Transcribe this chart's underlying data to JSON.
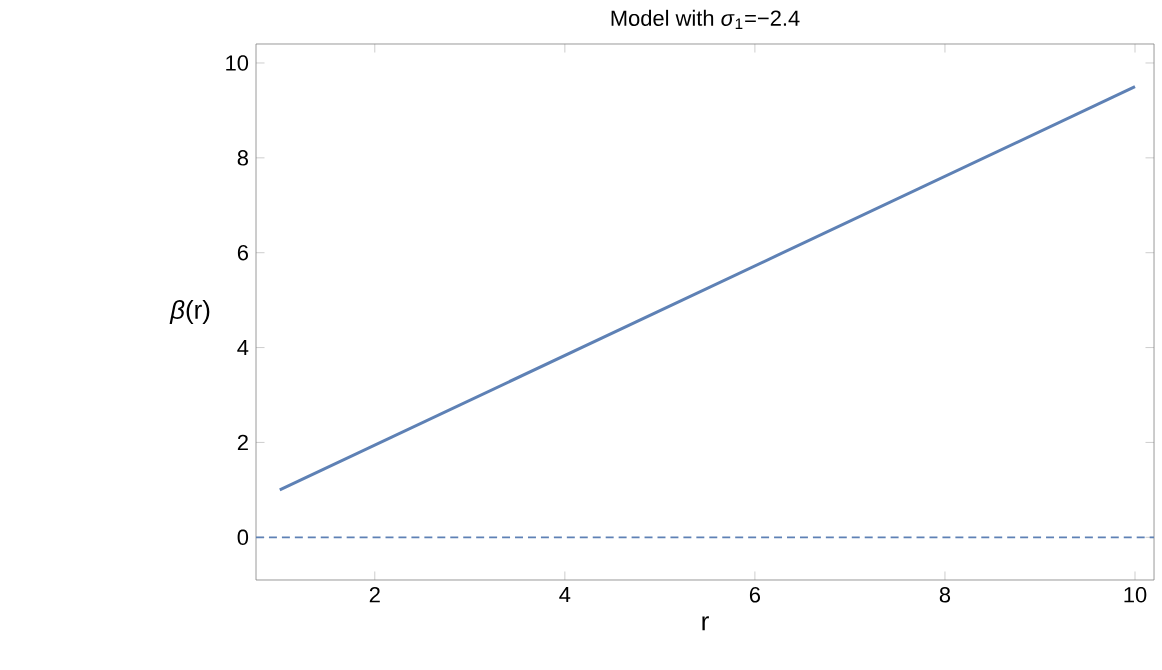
{
  "chart_data": {
    "type": "line",
    "title": "Model with *σ*$_{1}$=−2.4",
    "xlabel": "r",
    "ylabel": "*β*(r)",
    "series": [
      {
        "color": "#5e81b5",
        "x": [
          1,
          10
        ],
        "values": [
          1,
          9.5
        ]
      }
    ],
    "ref_lines": [
      {
        "axis": "y",
        "value": 0,
        "color": "#5e81b5",
        "line_style": "dashed"
      }
    ],
    "xlim": [
      0.75,
      10.2
    ],
    "ylim": [
      -0.9,
      10.4
    ],
    "xticks": [
      2,
      4,
      6,
      8,
      10
    ],
    "yticks": [
      0,
      2,
      4,
      6,
      8,
      10
    ],
    "grid": false,
    "marker": "none",
    "line_style": "solid"
  }
}
